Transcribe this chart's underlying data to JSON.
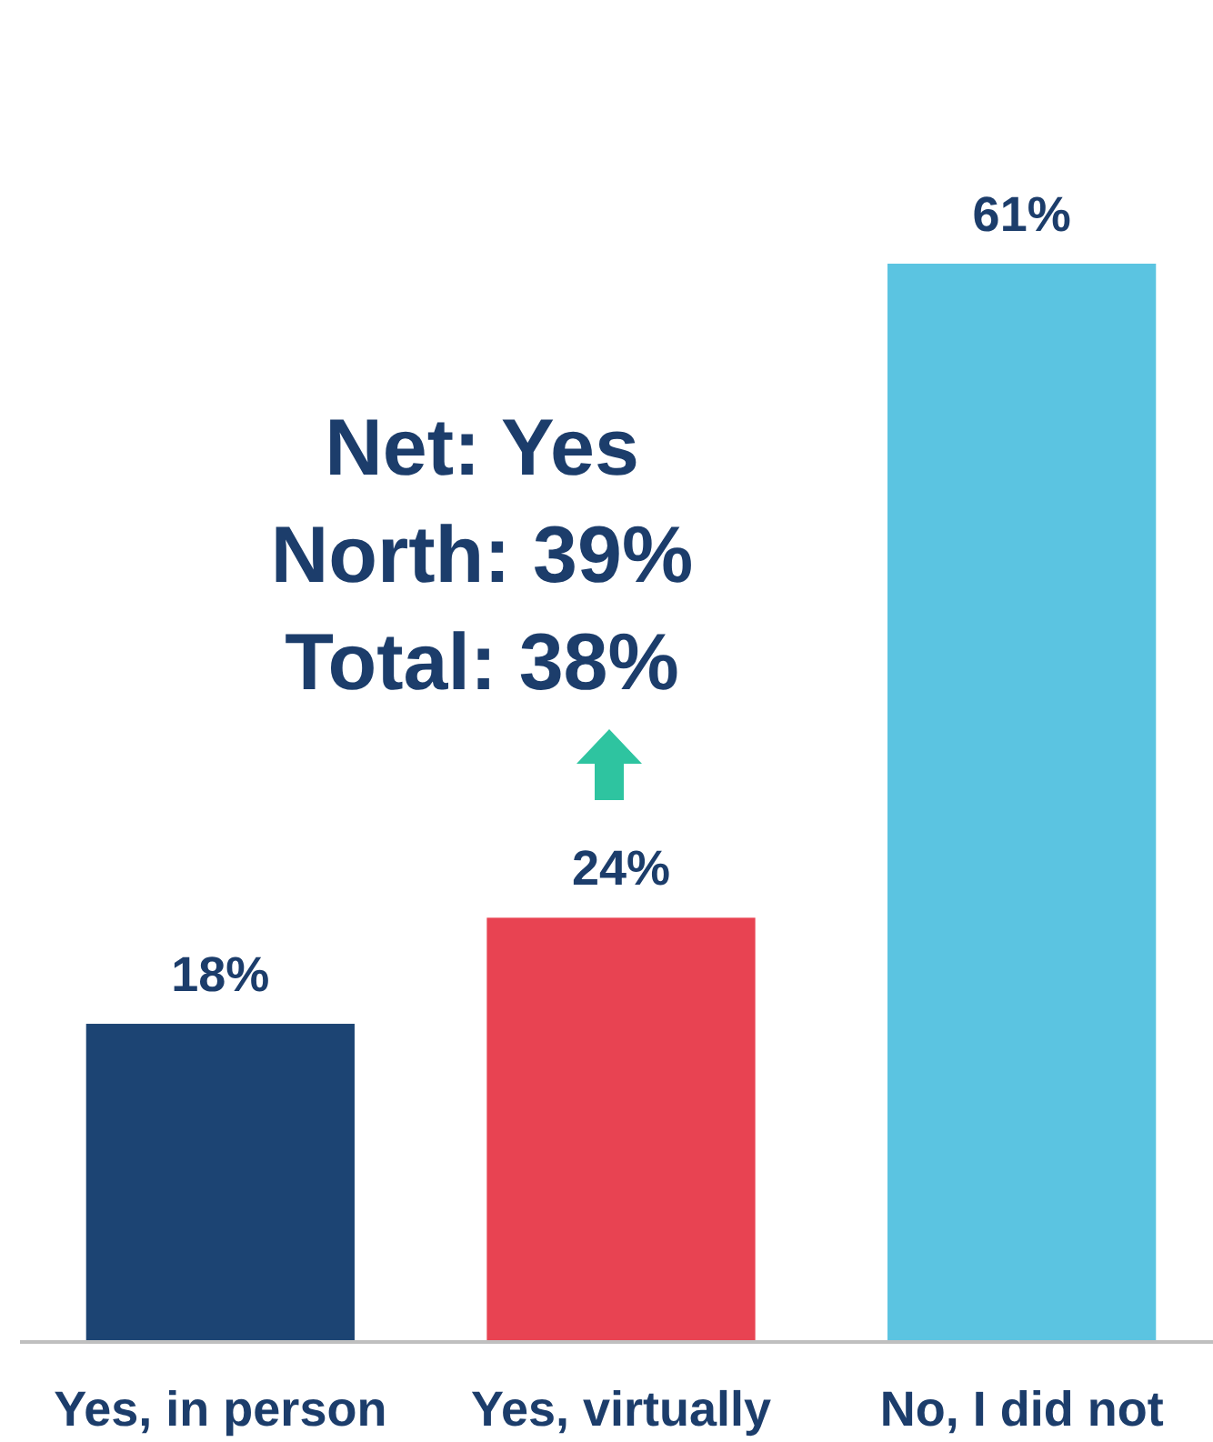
{
  "chart_data": {
    "type": "bar",
    "categories": [
      "Yes, in person",
      "Yes, virtually",
      "No, I did not"
    ],
    "values": [
      18,
      24,
      61
    ],
    "value_labels": [
      "18%",
      "24%",
      "61%"
    ],
    "colors": [
      "#1c4473",
      "#e84352",
      "#5bc4e1"
    ],
    "annotations": [
      "Net: Yes",
      "North: 39%",
      "Total: 38%"
    ]
  }
}
